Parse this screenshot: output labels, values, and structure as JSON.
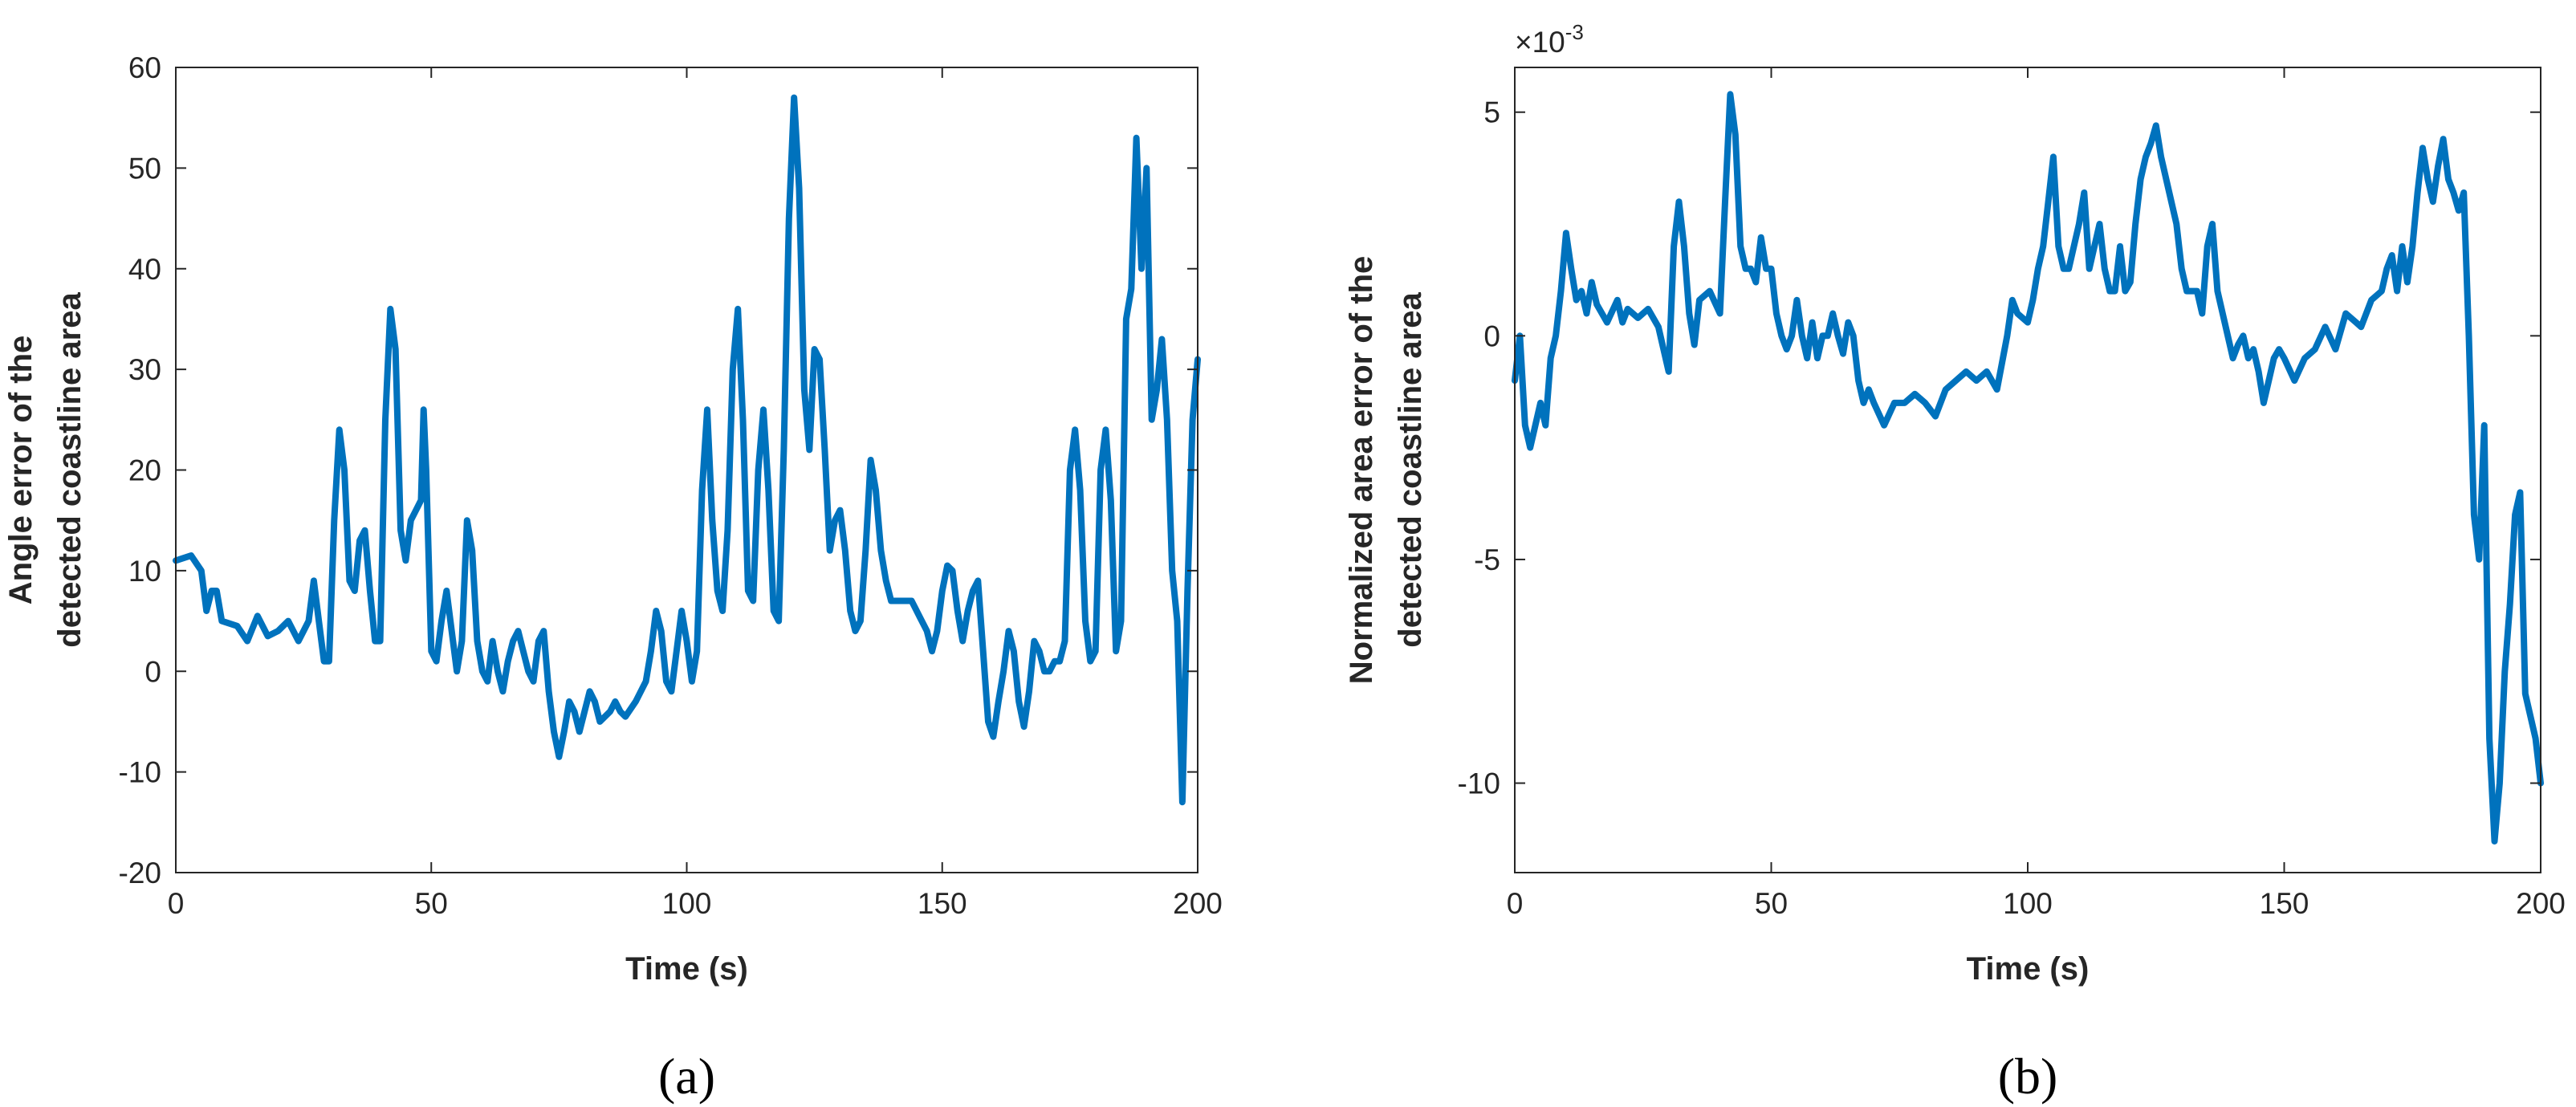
{
  "chart_data": [
    {
      "type": "line",
      "xlabel": "Time (s)",
      "ylabel": [
        "Angle error of the",
        "detected coastline area"
      ],
      "caption": "(a)",
      "xlim": [
        0,
        200
      ],
      "xticks": [
        0,
        50,
        100,
        150,
        200
      ],
      "ylim": [
        -20,
        60
      ],
      "yticks": [
        -20,
        -10,
        0,
        10,
        20,
        30,
        40,
        50,
        60
      ],
      "grid": false,
      "x": [
        0,
        3,
        5,
        6,
        7,
        8,
        9,
        12,
        14,
        16,
        18,
        20,
        22,
        24,
        26,
        27,
        28,
        29,
        30,
        31,
        32,
        33,
        34,
        35,
        36,
        37,
        38,
        39,
        40,
        41,
        42,
        43,
        44,
        45,
        46,
        47,
        48,
        48.5,
        49,
        50,
        51,
        52,
        53,
        54,
        55,
        56,
        57,
        58,
        59,
        60,
        61,
        62,
        63,
        64,
        65,
        66,
        67,
        68,
        69,
        70,
        71,
        72,
        73,
        74,
        75,
        76,
        77,
        78,
        79,
        80,
        81,
        82,
        83,
        85,
        86,
        87,
        88,
        90,
        92,
        93,
        94,
        95,
        96,
        97,
        98,
        99,
        100,
        101,
        102,
        103,
        104,
        105,
        106,
        107,
        108,
        109,
        110,
        111,
        112,
        113,
        114,
        115,
        116,
        117,
        118,
        119,
        120,
        121,
        122,
        123,
        124,
        125,
        126,
        127,
        128,
        129,
        130,
        131,
        132,
        133,
        134,
        135,
        136,
        137,
        138,
        139,
        140,
        142,
        144,
        146,
        147,
        148,
        149,
        150,
        151,
        152,
        153,
        154,
        155,
        156,
        157,
        158,
        159,
        160,
        161,
        162,
        163,
        164,
        165,
        166,
        167,
        168,
        169,
        170,
        171,
        172,
        173,
        174,
        175,
        176,
        177,
        178,
        179,
        180,
        181,
        182,
        183,
        184,
        185,
        186,
        187,
        188,
        189,
        190,
        191,
        192,
        193,
        194,
        195,
        196,
        197,
        198,
        199,
        200
      ],
      "series": [
        {
          "color": "#0072bd",
          "values": [
            11,
            11.5,
            10,
            6,
            8,
            8,
            5,
            4.5,
            3,
            5.5,
            3.5,
            4,
            5,
            3,
            5,
            9,
            5,
            1,
            1,
            15,
            24,
            20,
            9,
            8,
            13,
            14,
            8,
            3,
            3,
            25,
            36,
            32,
            14,
            11,
            15,
            16,
            17,
            26,
            20,
            2,
            1,
            5,
            8,
            4,
            0,
            3,
            15,
            12,
            3,
            0,
            -1,
            3,
            0,
            -2,
            1,
            3,
            4,
            2,
            0,
            -1,
            3,
            4,
            -2,
            -6,
            -8.5,
            -6,
            -3,
            -4,
            -6,
            -4,
            -2,
            -3,
            -5,
            -4,
            -3,
            -4,
            -4.5,
            -3,
            -1,
            2,
            6,
            4,
            -1,
            -2,
            2,
            6,
            3,
            -1,
            2,
            18,
            26,
            15,
            8,
            6,
            14,
            30,
            36,
            25,
            8,
            7,
            20,
            26,
            18,
            6,
            5,
            22,
            45,
            57,
            48,
            28,
            22,
            32,
            31,
            22,
            12,
            15,
            16,
            12,
            6,
            4,
            5,
            12,
            21,
            18,
            12,
            9,
            7,
            7,
            7,
            5,
            4,
            2,
            4,
            8,
            10.5,
            10,
            6,
            3,
            6,
            8,
            9,
            2,
            -5,
            -6.5,
            -3,
            0,
            4,
            2,
            -3,
            -5.5,
            -2,
            3,
            2,
            0,
            0,
            1,
            1,
            3,
            20,
            24,
            18,
            5,
            1,
            2,
            20,
            24,
            17,
            2,
            5,
            35,
            38,
            53,
            40,
            50,
            25,
            28,
            33,
            25,
            10,
            5,
            -13,
            8,
            25,
            31
          ]
        }
      ]
    },
    {
      "type": "line",
      "xlabel": "Time (s)",
      "ylabel": [
        "Normalized area error of the",
        "detected coastline area"
      ],
      "caption": "(b)",
      "y_multiplier": {
        "base": "×10",
        "exponent": "-3"
      },
      "xlim": [
        0,
        200
      ],
      "xticks": [
        0,
        50,
        100,
        150,
        200
      ],
      "ylim": [
        -12,
        6
      ],
      "yticks": [
        -10,
        -5,
        0,
        5
      ],
      "grid": false,
      "x": [
        0,
        1,
        2,
        3,
        4,
        5,
        6,
        7,
        8,
        9,
        10,
        11,
        12,
        13,
        14,
        15,
        16,
        18,
        20,
        21,
        22,
        24,
        26,
        28,
        30,
        31,
        32,
        33,
        34,
        35,
        36,
        38,
        40,
        41,
        42,
        43,
        44,
        45,
        46,
        47,
        48,
        49,
        50,
        51,
        52,
        53,
        54,
        55,
        56,
        57,
        58,
        59,
        60,
        61,
        62,
        63,
        64,
        65,
        66,
        67,
        68,
        69,
        70,
        72,
        74,
        76,
        78,
        80,
        82,
        84,
        86,
        88,
        90,
        92,
        94,
        96,
        97,
        98,
        100,
        101,
        102,
        103,
        104,
        105,
        106,
        107,
        108,
        109,
        110,
        111,
        112,
        113,
        114,
        115,
        116,
        117,
        118,
        119,
        120,
        121,
        122,
        123,
        124,
        125,
        126,
        127,
        128,
        129,
        130,
        131,
        132,
        133,
        134,
        135,
        136,
        137,
        138,
        139,
        140,
        141,
        142,
        143,
        144,
        145,
        146,
        147,
        148,
        149,
        150,
        152,
        154,
        156,
        158,
        160,
        162,
        164,
        165,
        167,
        169,
        170,
        171,
        172,
        173,
        174,
        175,
        176,
        177,
        178,
        179,
        180,
        181,
        182,
        183,
        184,
        185,
        186,
        187,
        188,
        189,
        190,
        191,
        192,
        193,
        194,
        195,
        196,
        197,
        198,
        199,
        200
      ],
      "series": [
        {
          "color": "#0072bd",
          "values": [
            -1,
            0,
            -2,
            -2.5,
            -2,
            -1.5,
            -2,
            -0.5,
            0,
            1,
            2.3,
            1.5,
            0.8,
            1,
            0.5,
            1.2,
            0.7,
            0.3,
            0.8,
            0.3,
            0.6,
            0.4,
            0.6,
            0.2,
            -0.8,
            2,
            3,
            2,
            0.5,
            -0.2,
            0.8,
            1,
            0.5,
            3,
            5.4,
            4.5,
            2,
            1.5,
            1.5,
            1.2,
            2.2,
            1.5,
            1.5,
            0.5,
            0,
            -0.3,
            0,
            0.8,
            0,
            -0.5,
            0.3,
            -0.5,
            0,
            0,
            0.5,
            0,
            -0.4,
            0.3,
            0,
            -1,
            -1.5,
            -1.2,
            -1.5,
            -2,
            -1.5,
            -1.5,
            -1.3,
            -1.5,
            -1.8,
            -1.2,
            -1,
            -0.8,
            -1,
            -0.8,
            -1.2,
            0,
            0.8,
            0.5,
            0.3,
            0.8,
            1.5,
            2,
            3,
            4,
            2,
            1.5,
            1.5,
            2,
            2.5,
            3.2,
            1.5,
            2,
            2.5,
            1.5,
            1,
            1,
            2,
            1,
            1.2,
            2.5,
            3.5,
            4,
            4.3,
            4.7,
            4,
            3.5,
            3,
            2.5,
            1.5,
            1,
            1,
            1,
            0.5,
            2,
            2.5,
            1,
            0.5,
            0,
            -0.5,
            -0.2,
            0,
            -0.5,
            -0.3,
            -0.8,
            -1.5,
            -1,
            -0.5,
            -0.3,
            -0.5,
            -1,
            -0.5,
            -0.3,
            0.2,
            -0.3,
            0.5,
            0.3,
            0.2,
            0.8,
            1,
            1.5,
            1.8,
            1,
            2,
            1.2,
            2,
            3.2,
            4.2,
            3.5,
            3,
            3.8,
            4.4,
            3.5,
            3.2,
            2.8,
            3.2,
            0,
            -4,
            -5,
            -2,
            -9,
            -11.3,
            -10,
            -7.5,
            -6,
            -4,
            -3.5,
            -8,
            -8.5,
            -9,
            -10
          ]
        }
      ]
    }
  ]
}
